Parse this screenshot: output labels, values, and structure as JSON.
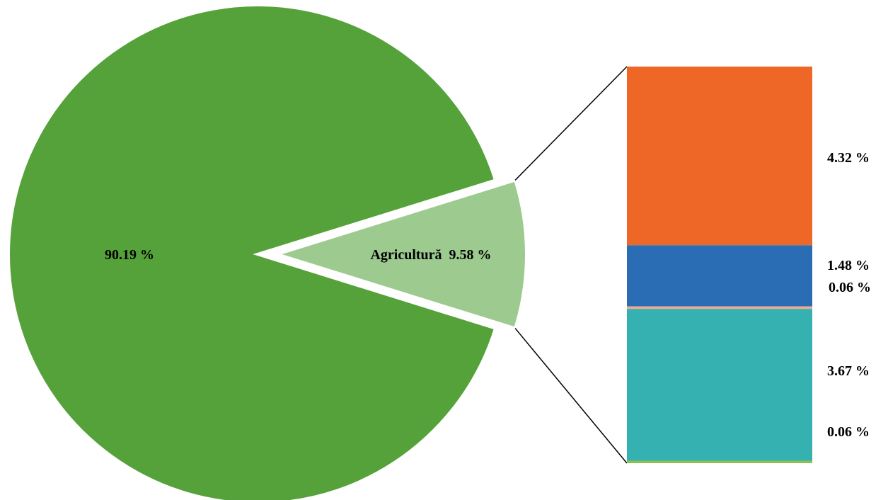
{
  "chart_data": {
    "type": "pie",
    "subtype": "bar-of-pie",
    "slices": [
      {
        "label": "",
        "value_label": "90.19 %",
        "value": 90.19,
        "color": "#55A23A"
      },
      {
        "label": "Agricultură",
        "value_label": "9.58 %",
        "value": 9.58,
        "color": "#9CCA8F"
      }
    ],
    "breakdown": [
      {
        "value_label": "4.32 %",
        "value": 4.32,
        "color": "#EF6726"
      },
      {
        "value_label": "1.48 %",
        "value": 1.48,
        "color": "#2B6DB5"
      },
      {
        "value_label": "0.06 %",
        "value": 0.06,
        "color": "#F2A98C"
      },
      {
        "value_label": "3.67 %",
        "value": 3.67,
        "color": "#34B1B0"
      },
      {
        "value_label": "0.06 %",
        "value": 0.06,
        "color": "#8DC152"
      }
    ]
  }
}
